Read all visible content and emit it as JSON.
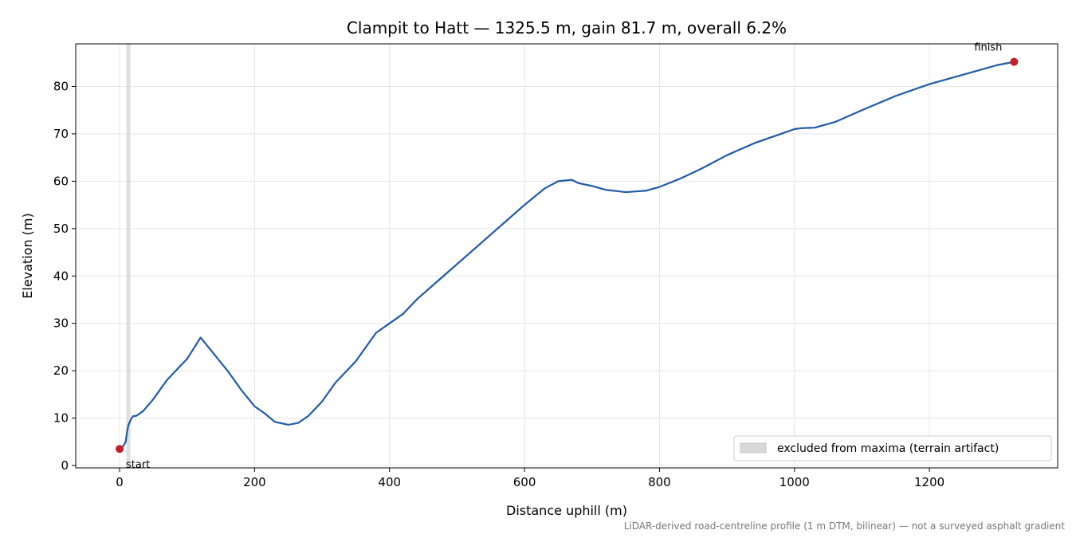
{
  "chart_data": {
    "type": "line",
    "title": "Clampit to Hatt — 1325.5 m, gain 81.7 m, overall 6.2%",
    "xlabel": "Distance uphill (m)",
    "ylabel": "Elevation (m)",
    "xlim": [
      -65,
      1390
    ],
    "ylim": [
      -0.5,
      89
    ],
    "xticks": [
      0,
      200,
      400,
      600,
      800,
      1000,
      1200
    ],
    "xtick_labels": [
      "0",
      "200",
      "400",
      "600",
      "800",
      "1000",
      "1200"
    ],
    "yticks": [
      0,
      10,
      20,
      30,
      40,
      50,
      60,
      70,
      80
    ],
    "ytick_labels": [
      "0",
      "10",
      "20",
      "30",
      "40",
      "50",
      "60",
      "70",
      "80"
    ],
    "grid": true,
    "series": [
      {
        "color": "#1f5aa8",
        "points": [
          [
            0,
            3.5
          ],
          [
            5,
            4
          ],
          [
            9,
            5
          ],
          [
            11,
            7
          ],
          [
            13,
            8.5
          ],
          [
            17,
            9.8
          ],
          [
            20,
            10.4
          ],
          [
            25,
            10.5
          ],
          [
            35,
            11.5
          ],
          [
            50,
            14
          ],
          [
            70,
            18
          ],
          [
            100,
            22.5
          ],
          [
            120,
            27
          ],
          [
            140,
            23.5
          ],
          [
            160,
            20
          ],
          [
            180,
            16
          ],
          [
            200,
            12.5
          ],
          [
            215,
            11
          ],
          [
            230,
            9.2
          ],
          [
            250,
            8.6
          ],
          [
            265,
            9
          ],
          [
            280,
            10.5
          ],
          [
            300,
            13.5
          ],
          [
            320,
            17.5
          ],
          [
            350,
            22
          ],
          [
            380,
            28
          ],
          [
            400,
            30
          ],
          [
            420,
            32
          ],
          [
            440,
            35
          ],
          [
            480,
            40
          ],
          [
            520,
            45
          ],
          [
            560,
            50
          ],
          [
            600,
            55
          ],
          [
            630,
            58.5
          ],
          [
            650,
            60
          ],
          [
            670,
            60.3
          ],
          [
            680,
            59.6
          ],
          [
            700,
            59
          ],
          [
            720,
            58.2
          ],
          [
            750,
            57.7
          ],
          [
            780,
            58
          ],
          [
            800,
            58.8
          ],
          [
            830,
            60.5
          ],
          [
            860,
            62.5
          ],
          [
            900,
            65.5
          ],
          [
            940,
            68
          ],
          [
            980,
            70
          ],
          [
            1000,
            71
          ],
          [
            1010,
            71.2
          ],
          [
            1030,
            71.3
          ],
          [
            1060,
            72.5
          ],
          [
            1100,
            75
          ],
          [
            1150,
            78
          ],
          [
            1200,
            80.5
          ],
          [
            1250,
            82.5
          ],
          [
            1300,
            84.5
          ],
          [
            1325.5,
            85.2
          ]
        ]
      }
    ],
    "markers": [
      {
        "label": "start",
        "x": 0,
        "y": 3.5,
        "color": "#c41e2a"
      },
      {
        "label": "finish",
        "x": 1325.5,
        "y": 85.2,
        "color": "#c41e2a"
      }
    ],
    "shaded_regions": [
      {
        "x_from": 10,
        "x_to": 16,
        "color": "#d9d9d9"
      }
    ],
    "legend": {
      "placement": "lower-right",
      "entries": [
        {
          "label": "excluded from maxima (terrain artifact)",
          "color": "#d9d9d9"
        }
      ]
    },
    "caption": "LiDAR-derived road-centreline profile (1 m DTM, bilinear) — not a surveyed asphalt gradient"
  }
}
